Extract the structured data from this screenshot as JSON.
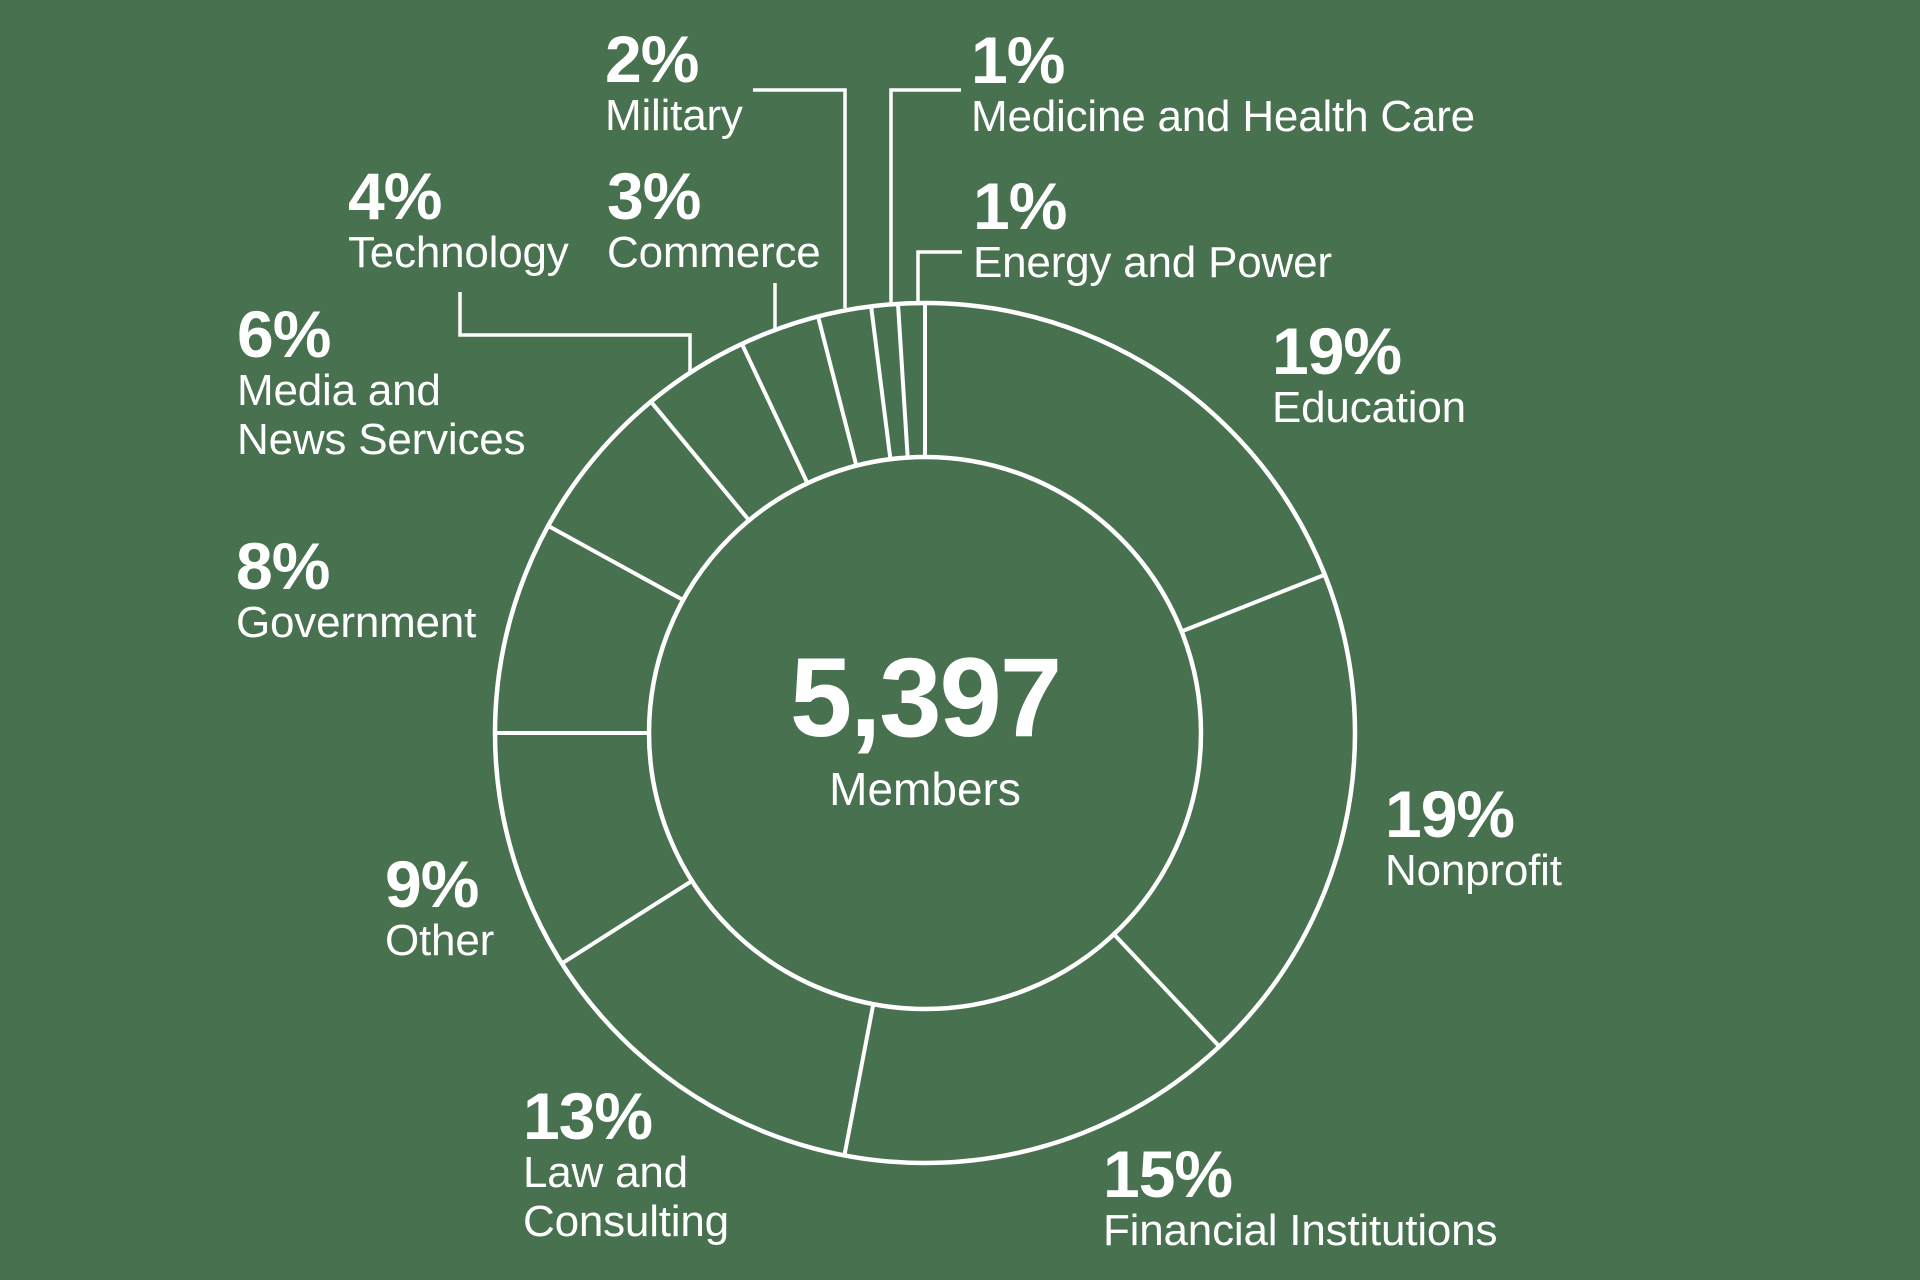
{
  "colors": {
    "background": "#48714F",
    "line": "#FFFFFF",
    "text": "#FFFFFF"
  },
  "chart_data": {
    "type": "pie",
    "variant": "donut",
    "title": "",
    "center_value": "5,397",
    "center_label": "Members",
    "start": "top",
    "direction": "clockwise",
    "legend_position": "around-labels",
    "slices": [
      {
        "label": "Education",
        "pct": 19,
        "pct_text": "19%"
      },
      {
        "label": "Nonprofit",
        "pct": 19,
        "pct_text": "19%"
      },
      {
        "label": "Financial Institutions",
        "pct": 15,
        "pct_text": "15%"
      },
      {
        "label": "Law and Consulting",
        "pct": 13,
        "pct_text": "13%"
      },
      {
        "label": "Other",
        "pct": 9,
        "pct_text": "9%"
      },
      {
        "label": "Government",
        "pct": 8,
        "pct_text": "8%"
      },
      {
        "label": "Media and News Services",
        "pct": 6,
        "pct_text": "6%"
      },
      {
        "label": "Technology",
        "pct": 4,
        "pct_text": "4%"
      },
      {
        "label": "Commerce",
        "pct": 3,
        "pct_text": "3%"
      },
      {
        "label": "Military",
        "pct": 2,
        "pct_text": "2%"
      },
      {
        "label": "Medicine and Health Care",
        "pct": 1,
        "pct_text": "1%"
      },
      {
        "label": "Energy and Power",
        "pct": 1,
        "pct_text": "1%"
      }
    ]
  }
}
